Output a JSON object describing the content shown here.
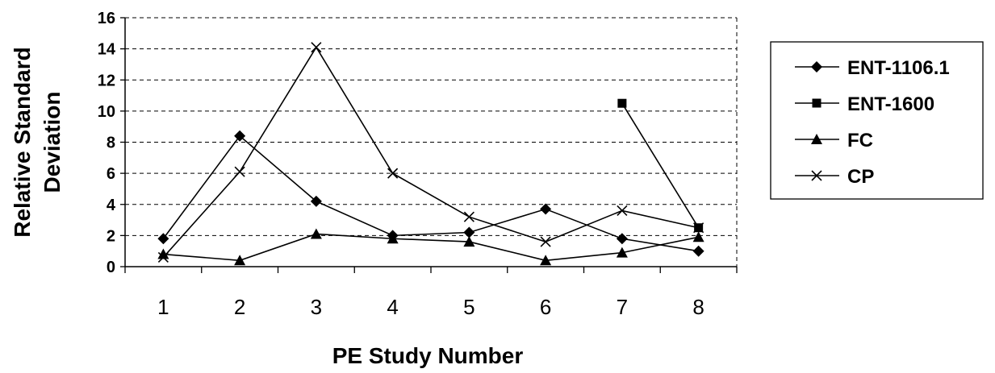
{
  "chart_data": {
    "type": "line",
    "title": "",
    "xlabel": "PE Study Number",
    "ylabel_lines": [
      "Relative Standard",
      "Deviation"
    ],
    "categories": [
      "1",
      "2",
      "3",
      "4",
      "5",
      "6",
      "7",
      "8"
    ],
    "yticks": [
      "0",
      "2",
      "4",
      "6",
      "8",
      "10",
      "12",
      "14",
      "16"
    ],
    "ylim": [
      0,
      16
    ],
    "grid": "horizontal-dashed",
    "legend_position": "right",
    "series": [
      {
        "name": "ENT-1106.1",
        "marker": "diamond",
        "values": [
          1.8,
          8.4,
          4.2,
          2.0,
          2.2,
          3.7,
          1.8,
          1.0
        ]
      },
      {
        "name": "ENT-1600",
        "marker": "square",
        "values": [
          null,
          null,
          null,
          null,
          null,
          null,
          10.5,
          2.5
        ]
      },
      {
        "name": "FC",
        "marker": "triangle",
        "values": [
          0.8,
          0.4,
          2.1,
          1.8,
          1.6,
          0.4,
          0.9,
          1.9
        ]
      },
      {
        "name": "CP",
        "marker": "x",
        "values": [
          0.6,
          6.1,
          14.1,
          6.0,
          3.2,
          1.6,
          3.6,
          2.5
        ]
      }
    ],
    "color": "#000000"
  }
}
